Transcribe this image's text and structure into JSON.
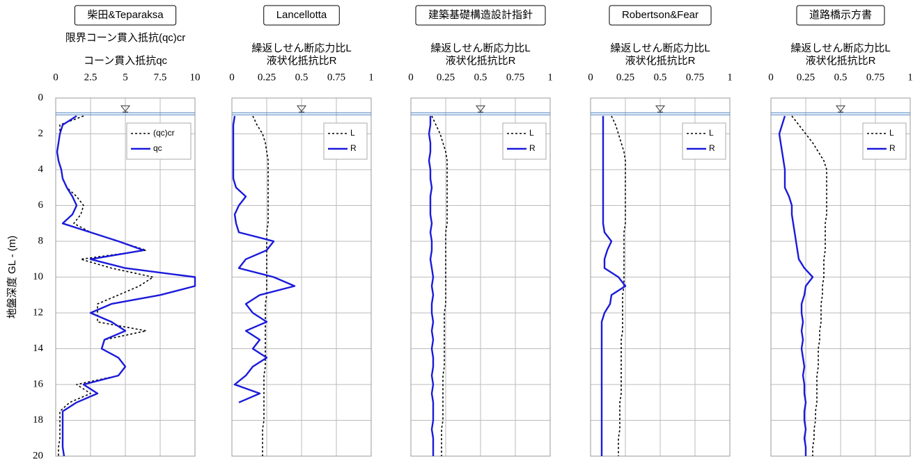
{
  "chart_data": [
    {
      "type": "line",
      "title": "柴田&Teparaksa",
      "x_label": [
        "限界コーン貫入抵抗(qc)cr",
        "コーン貫入抵抗qc"
      ],
      "y_label": "地盤深度 GL - (m)",
      "xlim": [
        0,
        10
      ],
      "xticks": [
        0,
        2.5,
        5,
        7.5,
        10
      ],
      "ylim": [
        0,
        20
      ],
      "yticks": [
        0,
        2,
        4,
        6,
        8,
        10,
        12,
        14,
        16,
        18,
        20
      ],
      "grid": true,
      "legend": "upper right",
      "water_level": 0.9,
      "y": [
        1,
        1.5,
        2,
        2.5,
        3,
        3.5,
        4,
        4.5,
        5,
        5.5,
        6,
        6.5,
        7,
        7.5,
        8,
        8.5,
        9,
        9.5,
        10,
        10.5,
        11,
        11.5,
        12,
        12.5,
        13,
        13.5,
        14,
        14.5,
        15,
        15.5,
        16,
        16.5,
        17,
        17.5,
        18,
        18.5,
        19,
        19.5,
        20
      ],
      "series": [
        {
          "name": "(qc)cr",
          "color": "#000000",
          "dash": true,
          "values": [
            2,
            0.3,
            0.3,
            0.2,
            0.1,
            0.2,
            0.4,
            0.5,
            0.8,
            1.5,
            2,
            1.8,
            1.3,
            2.5,
            4.5,
            6.5,
            1.8,
            4,
            7,
            6,
            4.5,
            3,
            3,
            3,
            6.5,
            3.5,
            3.3,
            4.5,
            5,
            4.5,
            1.5,
            2.5,
            1,
            0.3,
            0.3,
            0.3,
            0.3,
            0.2,
            0.2
          ]
        },
        {
          "name": "qc",
          "color": "#1a1adb",
          "dash": false,
          "values": [
            1.5,
            0.5,
            0.3,
            0.2,
            0.1,
            0.2,
            0.4,
            0.5,
            0.8,
            1.2,
            1.5,
            1.2,
            0.5,
            2.5,
            4.5,
            6.3,
            2.5,
            5,
            10,
            10,
            7.5,
            4,
            2.5,
            4,
            5,
            3.5,
            3.3,
            4.5,
            5,
            4.5,
            2,
            3,
            1.5,
            0.5,
            0.5,
            0.5,
            0.5,
            0.5,
            0.6
          ]
        }
      ]
    },
    {
      "type": "line",
      "title": "Lancellotta",
      "x_label": [
        "繰返しせん断応力比L",
        "液状化抵抗比R"
      ],
      "xlim": [
        0,
        1
      ],
      "xticks": [
        0,
        0.25,
        0.5,
        0.75,
        1
      ],
      "ylim": [
        0,
        20
      ],
      "yticks": [
        0,
        2,
        4,
        6,
        8,
        10,
        12,
        14,
        16,
        18,
        20
      ],
      "grid": true,
      "legend": "upper right",
      "water_level": 0.9,
      "y": [
        1,
        1.5,
        2,
        2.5,
        3,
        3.5,
        4,
        4.5,
        5,
        5.5,
        6,
        6.5,
        7,
        7.5,
        8,
        8.5,
        9,
        9.5,
        10,
        10.5,
        11,
        11.5,
        12,
        12.5,
        13,
        13.5,
        14,
        14.5,
        15,
        15.5,
        16,
        16.5,
        17,
        17.5,
        18,
        18.5,
        19,
        19.5,
        20
      ],
      "series": [
        {
          "name": "L",
          "color": "#000000",
          "dash": true,
          "values": [
            0.15,
            0.18,
            0.22,
            0.24,
            0.25,
            0.26,
            0.26,
            0.26,
            0.26,
            0.26,
            0.26,
            0.26,
            0.26,
            0.25,
            0.25,
            0.25,
            0.25,
            0.25,
            0.25,
            0.25,
            0.25,
            0.24,
            0.24,
            0.24,
            0.24,
            0.24,
            0.24,
            0.24,
            0.24,
            0.23,
            0.23,
            0.23,
            0.23,
            0.23,
            0.23,
            0.22,
            0.22,
            0.22,
            0.22
          ]
        },
        {
          "name": "R",
          "color": "#1a1adb",
          "dash": false,
          "values": [
            0.02,
            0.01,
            0.01,
            0.01,
            0.01,
            0.01,
            0.01,
            0.01,
            0.03,
            0.1,
            0.05,
            0.02,
            0.03,
            0.05,
            0.3,
            0.25,
            0.1,
            0.05,
            0.3,
            0.45,
            0.2,
            0.1,
            0.15,
            0.25,
            0.1,
            0.2,
            0.15,
            0.25,
            0.15,
            0.1,
            0.02,
            0.2,
            0.05,
            null,
            null,
            null,
            null,
            null,
            null
          ]
        }
      ]
    },
    {
      "type": "line",
      "title": "建築基礎構造設計指針",
      "x_label": [
        "繰返しせん断応力比L",
        "液状化抵抗比R"
      ],
      "xlim": [
        0,
        1
      ],
      "xticks": [
        0,
        0.25,
        0.5,
        0.75,
        1
      ],
      "ylim": [
        0,
        20
      ],
      "yticks": [
        0,
        2,
        4,
        6,
        8,
        10,
        12,
        14,
        16,
        18,
        20
      ],
      "grid": true,
      "legend": "upper right",
      "water_level": 0.9,
      "y": [
        1,
        1.5,
        2,
        2.5,
        3,
        3.5,
        4,
        4.5,
        5,
        5.5,
        6,
        6.5,
        7,
        7.5,
        8,
        8.5,
        9,
        9.5,
        10,
        10.5,
        11,
        11.5,
        12,
        12.5,
        13,
        13.5,
        14,
        14.5,
        15,
        15.5,
        16,
        16.5,
        17,
        17.5,
        18,
        18.5,
        19,
        19.5,
        20
      ],
      "series": [
        {
          "name": "L",
          "color": "#000000",
          "dash": true,
          "values": [
            0.15,
            0.18,
            0.21,
            0.23,
            0.25,
            0.26,
            0.26,
            0.26,
            0.26,
            0.26,
            0.26,
            0.26,
            0.26,
            0.25,
            0.25,
            0.25,
            0.25,
            0.25,
            0.25,
            0.25,
            0.25,
            0.25,
            0.24,
            0.24,
            0.24,
            0.24,
            0.24,
            0.24,
            0.24,
            0.23,
            0.23,
            0.23,
            0.23,
            0.23,
            0.23,
            0.22,
            0.22,
            0.22,
            0.22
          ]
        },
        {
          "name": "R",
          "color": "#1a1adb",
          "dash": false,
          "values": [
            0.14,
            0.14,
            0.13,
            0.14,
            0.14,
            0.13,
            0.14,
            0.14,
            0.15,
            0.14,
            0.14,
            0.14,
            0.15,
            0.14,
            0.15,
            0.15,
            0.14,
            0.15,
            0.16,
            0.15,
            0.16,
            0.15,
            0.15,
            0.16,
            0.15,
            0.16,
            0.15,
            0.16,
            0.16,
            0.15,
            0.16,
            0.15,
            0.16,
            0.16,
            0.16,
            0.15,
            0.16,
            0.16,
            0.16
          ]
        }
      ]
    },
    {
      "type": "line",
      "title": "Robertson&Fear",
      "x_label": [
        "繰返しせん断応力比L",
        "液状化抵抗比R"
      ],
      "xlim": [
        0,
        1
      ],
      "xticks": [
        0,
        0.25,
        0.5,
        0.75,
        1
      ],
      "ylim": [
        0,
        20
      ],
      "yticks": [
        0,
        2,
        4,
        6,
        8,
        10,
        12,
        14,
        16,
        18,
        20
      ],
      "grid": true,
      "legend": "upper right",
      "water_level": 0.9,
      "y": [
        1,
        1.5,
        2,
        2.5,
        3,
        3.5,
        4,
        4.5,
        5,
        5.5,
        6,
        6.5,
        7,
        7.5,
        8,
        8.5,
        9,
        9.5,
        10,
        10.5,
        11,
        11.5,
        12,
        12.5,
        13,
        13.5,
        14,
        14.5,
        15,
        15.5,
        16,
        16.5,
        17,
        17.5,
        18,
        18.5,
        19,
        19.5,
        20
      ],
      "series": [
        {
          "name": "L",
          "color": "#000000",
          "dash": true,
          "values": [
            0.15,
            0.18,
            0.2,
            0.22,
            0.24,
            0.25,
            0.25,
            0.25,
            0.25,
            0.25,
            0.25,
            0.25,
            0.25,
            0.24,
            0.24,
            0.24,
            0.24,
            0.24,
            0.24,
            0.24,
            0.23,
            0.23,
            0.23,
            0.23,
            0.23,
            0.22,
            0.22,
            0.22,
            0.22,
            0.22,
            0.22,
            0.22,
            0.21,
            0.21,
            0.21,
            0.21,
            0.2,
            0.2,
            0.2
          ]
        },
        {
          "name": "R",
          "color": "#1a1adb",
          "dash": false,
          "values": [
            0.09,
            0.09,
            0.09,
            0.09,
            0.09,
            0.09,
            0.09,
            0.09,
            0.09,
            0.09,
            0.09,
            0.09,
            0.09,
            0.1,
            0.15,
            0.12,
            0.1,
            0.1,
            0.2,
            0.25,
            0.15,
            0.14,
            0.1,
            0.08,
            0.08,
            0.08,
            0.08,
            0.08,
            0.08,
            0.08,
            0.08,
            0.08,
            0.08,
            0.08,
            0.08,
            0.08,
            0.08,
            0.08,
            0.08
          ]
        }
      ]
    },
    {
      "type": "line",
      "title": "道路橋示方書",
      "x_label": [
        "繰返しせん断応力比L",
        "液状化抵抗比R"
      ],
      "xlim": [
        0,
        1
      ],
      "xticks": [
        0,
        0.25,
        0.5,
        0.75,
        1
      ],
      "ylim": [
        0,
        20
      ],
      "yticks": [
        0,
        2,
        4,
        6,
        8,
        10,
        12,
        14,
        16,
        18,
        20
      ],
      "grid": true,
      "legend": "upper right",
      "water_level": 0.9,
      "y": [
        1,
        1.5,
        2,
        2.5,
        3,
        3.5,
        4,
        4.5,
        5,
        5.5,
        6,
        6.5,
        7,
        7.5,
        8,
        8.5,
        9,
        9.5,
        10,
        10.5,
        11,
        11.5,
        12,
        12.5,
        13,
        13.5,
        14,
        14.5,
        15,
        15.5,
        16,
        16.5,
        17,
        17.5,
        18,
        18.5,
        19,
        19.5,
        20
      ],
      "series": [
        {
          "name": "L",
          "color": "#000000",
          "dash": true,
          "values": [
            0.15,
            0.2,
            0.25,
            0.3,
            0.34,
            0.38,
            0.4,
            0.4,
            0.4,
            0.4,
            0.4,
            0.4,
            0.39,
            0.39,
            0.39,
            0.39,
            0.38,
            0.38,
            0.38,
            0.37,
            0.37,
            0.36,
            0.36,
            0.36,
            0.35,
            0.35,
            0.34,
            0.34,
            0.34,
            0.33,
            0.33,
            0.33,
            0.33,
            0.32,
            0.32,
            0.31,
            0.31,
            0.3,
            0.3
          ]
        },
        {
          "name": "R",
          "color": "#1a1adb",
          "dash": false,
          "values": [
            0.1,
            0.08,
            0.06,
            0.07,
            0.08,
            0.09,
            0.1,
            0.1,
            0.1,
            0.13,
            0.15,
            0.15,
            0.16,
            0.17,
            0.18,
            0.19,
            0.2,
            0.24,
            0.3,
            0.25,
            0.24,
            0.22,
            0.22,
            0.23,
            0.22,
            0.23,
            0.22,
            0.23,
            0.24,
            0.23,
            0.24,
            0.24,
            0.25,
            0.24,
            0.24,
            0.25,
            0.24,
            0.25,
            0.25
          ]
        }
      ]
    }
  ]
}
